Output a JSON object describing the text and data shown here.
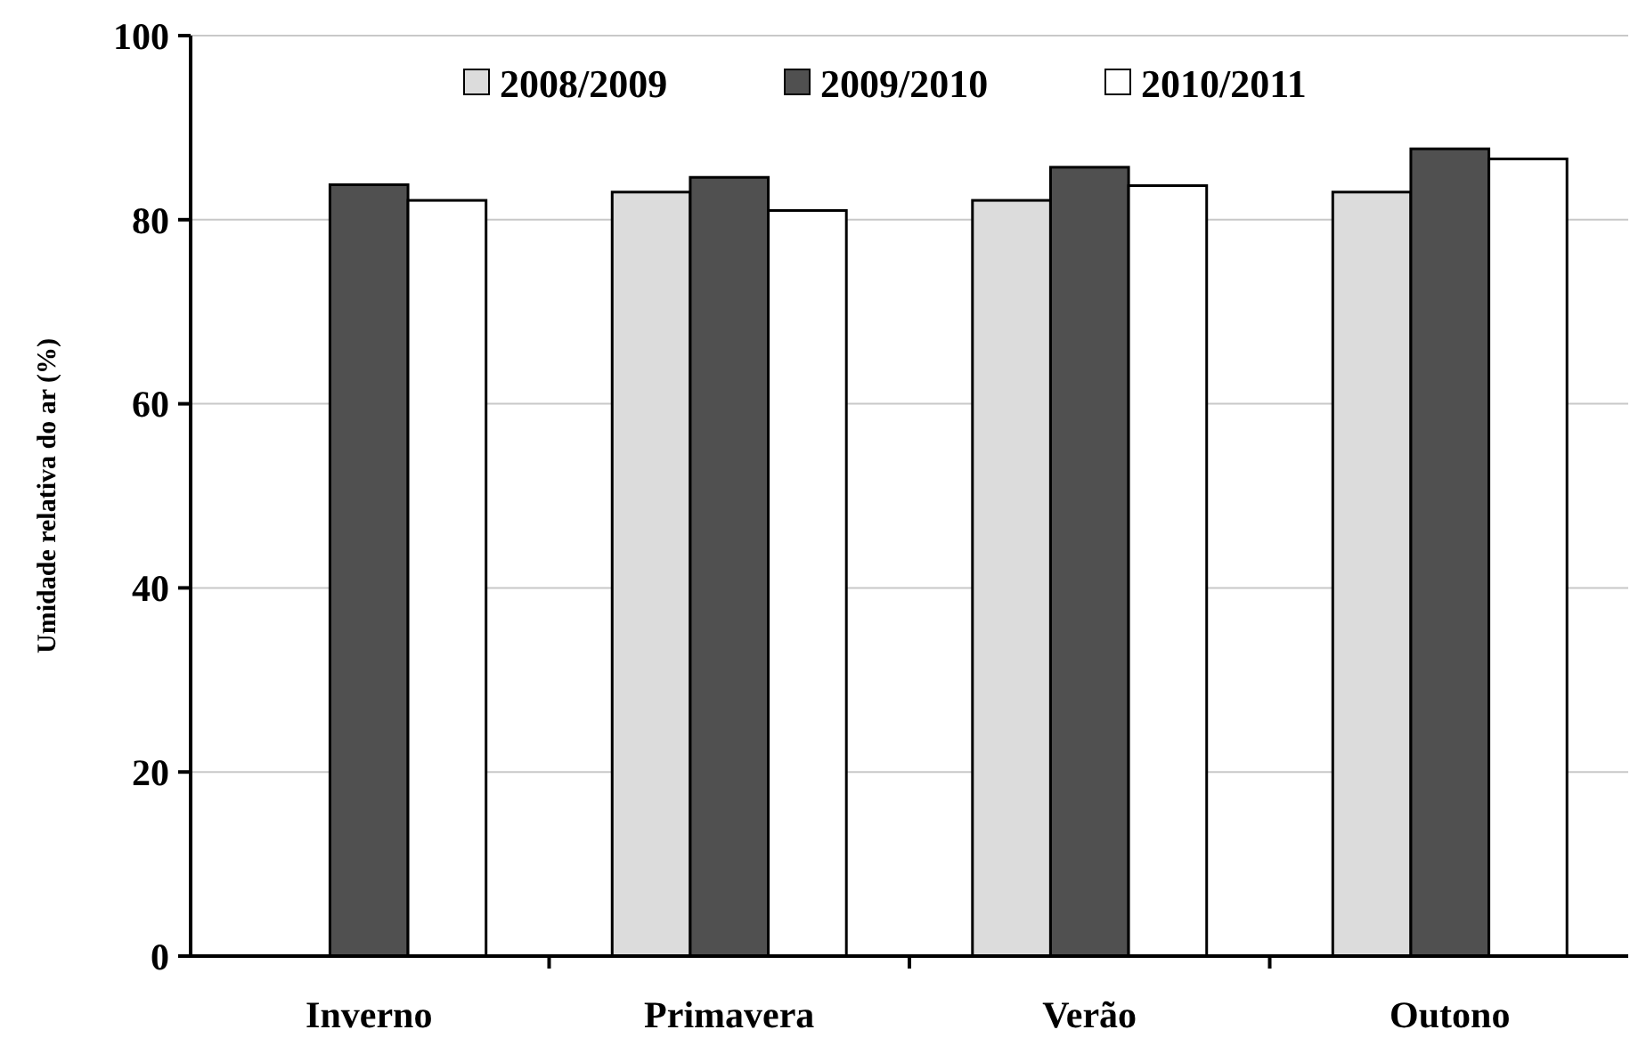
{
  "chart_data": {
    "type": "bar",
    "ylabel": "Umidade relativa do ar (%)",
    "categories": [
      "Inverno",
      "Primavera",
      "Verão",
      "Outono"
    ],
    "series": [
      {
        "name": "2008/2009",
        "color": "#dcdcdc",
        "values": [
          null,
          83.0,
          82.1,
          83.0
        ]
      },
      {
        "name": "2009/2010",
        "color": "#505050",
        "values": [
          83.8,
          84.6,
          85.7,
          87.7
        ]
      },
      {
        "name": "2010/2011",
        "color": "#ffffff",
        "values": [
          82.1,
          81.0,
          83.7,
          86.6
        ]
      }
    ],
    "ylim": [
      0,
      100
    ],
    "yticks": [
      0,
      20,
      40,
      60,
      80,
      100
    ],
    "grid": "y",
    "legend": "top"
  }
}
